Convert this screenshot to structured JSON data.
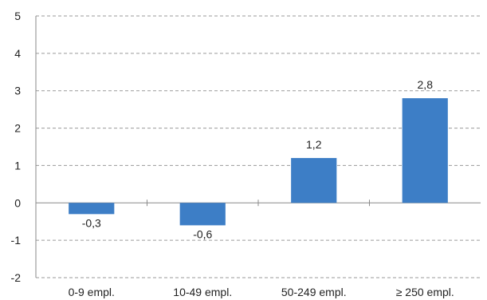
{
  "chart_data": {
    "type": "bar",
    "categories": [
      "0-9 empl.",
      "10-49 empl.",
      "50-249 empl.",
      "≥ 250 empl."
    ],
    "values": [
      -0.3,
      -0.6,
      1.2,
      2.8
    ],
    "data_labels": [
      "-0,3",
      "-0,6",
      "1,2",
      "2,8"
    ],
    "title": "",
    "xlabel": "",
    "ylabel": "",
    "ylim": [
      -2,
      5
    ],
    "yticks": [
      5,
      4,
      3,
      2,
      1,
      0,
      -1,
      -2
    ],
    "ytick_labels": [
      "5",
      "4",
      "3",
      "2",
      "1",
      "0",
      "-1",
      "-2"
    ],
    "grid": true,
    "legend": "none",
    "colors": {
      "bar": "#3D7EC6",
      "grid": "#9a9a9a",
      "axis": "#8a8a8a",
      "text": "#222222"
    }
  }
}
